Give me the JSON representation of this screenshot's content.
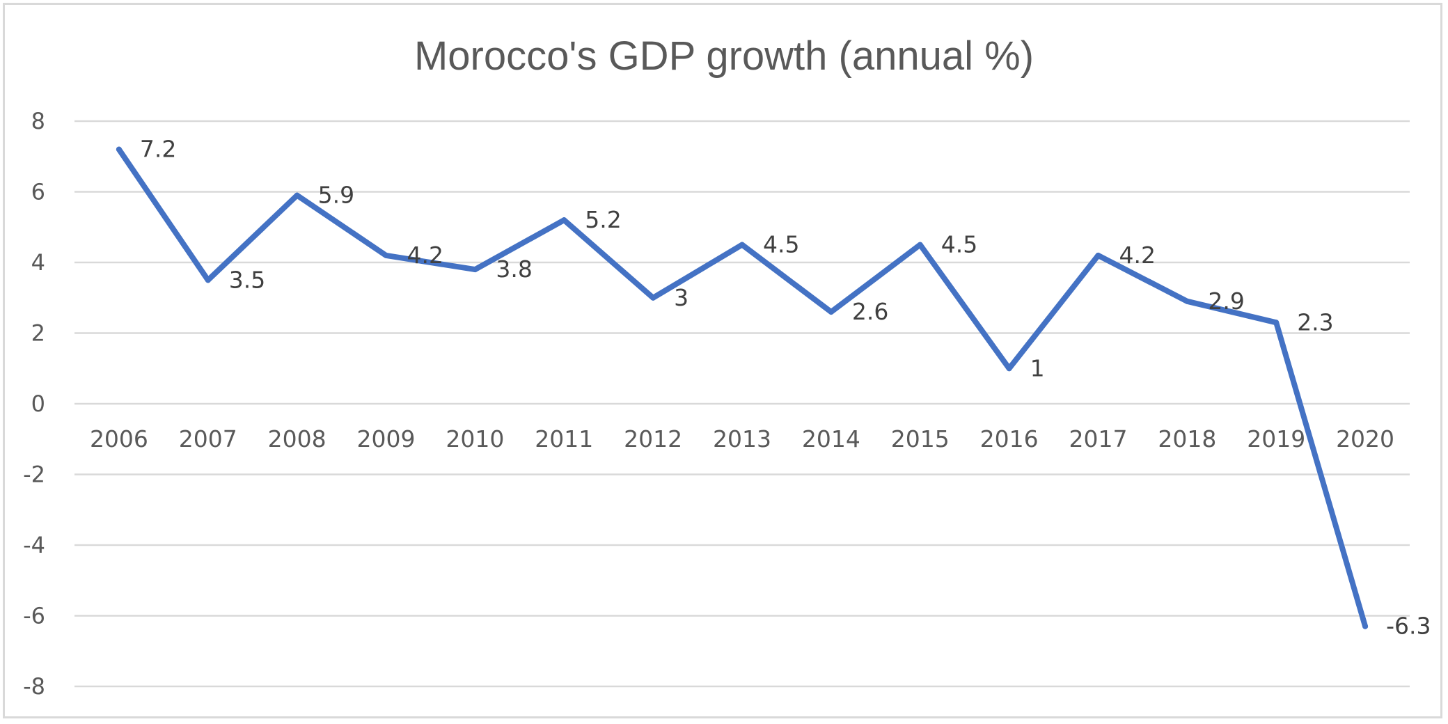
{
  "chart_data": {
    "type": "line",
    "title": "Morocco's GDP growth (annual %)",
    "xlabel": "",
    "ylabel": "",
    "categories": [
      "2006",
      "2007",
      "2008",
      "2009",
      "2010",
      "2011",
      "2012",
      "2013",
      "2014",
      "2015",
      "2016",
      "2017",
      "2018",
      "2019",
      "2020"
    ],
    "series": [
      {
        "values": [
          7.2,
          3.5,
          5.9,
          4.2,
          3.8,
          5.2,
          3,
          4.5,
          2.6,
          4.5,
          1,
          4.2,
          2.9,
          2.3,
          -6.3
        ],
        "data_labels": [
          "7.2",
          "3.5",
          "5.9",
          "4.2",
          "3.8",
          "5.2",
          "3",
          "4.5",
          "2.6",
          "4.5",
          "1",
          "4.2",
          "2.9",
          "2.3",
          "-6.3"
        ],
        "color": "#4472c4"
      }
    ],
    "ylim": [
      -8,
      8
    ],
    "yticks": [
      "8",
      "6",
      "4",
      "2",
      "0",
      "-2",
      "-4",
      "-6",
      "-8"
    ],
    "grid": true,
    "legend": "none"
  }
}
